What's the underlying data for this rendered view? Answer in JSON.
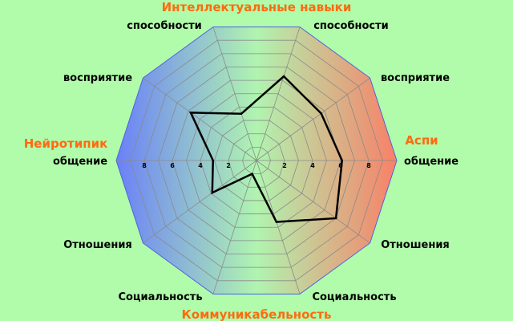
{
  "chart_data": {
    "type": "radar",
    "axis_labels": [
      "общение",
      "восприятие",
      "способности",
      "способности",
      "восприятие",
      "общение",
      "Отношения",
      "Социальность",
      "Социальность",
      "Отношения"
    ],
    "values": [
      6.1,
      5.7,
      6.3,
      3.5,
      5.8,
      3.1,
      3.9,
      1.0,
      4.6,
      7.0
    ],
    "range": [
      0,
      10
    ],
    "rings": 10,
    "tick_labels": [
      "2",
      "4",
      "6",
      "8"
    ],
    "group_labels": {
      "top": "Интеллектуальные навыки",
      "bottom": "Коммуникабельность",
      "left": "Нейротипик",
      "right": "Аспи"
    },
    "colors": {
      "background": "#b0fcaa",
      "left_fill": "#6a80f8",
      "center_fill": "#b0f4b0",
      "right_fill": "#f88068",
      "group_label": "#ff6a10",
      "series": "#000000",
      "grid": "#8a8a8a"
    }
  }
}
